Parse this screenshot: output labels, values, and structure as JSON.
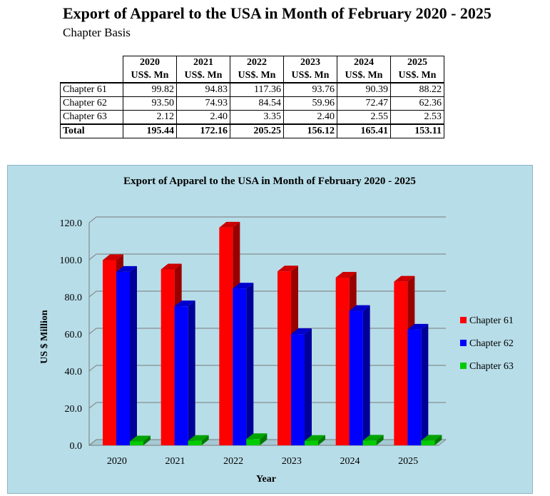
{
  "header": {
    "title": "Export of Apparel to the USA in Month of February 2020 - 2025",
    "subtitle": "Chapter Basis"
  },
  "table": {
    "years": [
      "2020",
      "2021",
      "2022",
      "2023",
      "2024",
      "2025"
    ],
    "unit": "US$. Mn",
    "rows": [
      {
        "label": "Chapter 61",
        "values": [
          "99.82",
          "94.83",
          "117.36",
          "93.76",
          "90.39",
          "88.22"
        ]
      },
      {
        "label": "Chapter 62",
        "values": [
          "93.50",
          "74.93",
          "84.54",
          "59.96",
          "72.47",
          "62.36"
        ]
      },
      {
        "label": "Chapter 63",
        "values": [
          "2.12",
          "2.40",
          "3.35",
          "2.40",
          "2.55",
          "2.53"
        ]
      },
      {
        "label": "Total",
        "values": [
          "195.44",
          "172.16",
          "205.25",
          "156.12",
          "165.41",
          "153.11"
        ]
      }
    ]
  },
  "colors": {
    "chapter61": "#ff0000",
    "chapter62": "#0000ff",
    "chapter63": "#00cc00",
    "chart_bg": "#b7dde8"
  },
  "chart_data": {
    "type": "bar",
    "title": "Export of Apparel to the USA in Month of February 2020 - 2025",
    "xlabel": "Year",
    "ylabel": "US $ Million",
    "categories": [
      "2020",
      "2021",
      "2022",
      "2023",
      "2024",
      "2025"
    ],
    "series": [
      {
        "name": "Chapter 61",
        "values": [
          99.82,
          94.83,
          117.36,
          93.76,
          90.39,
          88.22
        ]
      },
      {
        "name": "Chapter 62",
        "values": [
          93.5,
          74.93,
          84.54,
          59.96,
          72.47,
          62.36
        ]
      },
      {
        "name": "Chapter 63",
        "values": [
          2.12,
          2.4,
          3.35,
          2.4,
          2.55,
          2.53
        ]
      }
    ],
    "ylim": [
      0,
      120
    ],
    "yticks": [
      "0.0",
      "20.0",
      "40.0",
      "60.0",
      "80.0",
      "100.0",
      "120.0"
    ],
    "grid": true,
    "legend": "right",
    "style": "3d"
  }
}
